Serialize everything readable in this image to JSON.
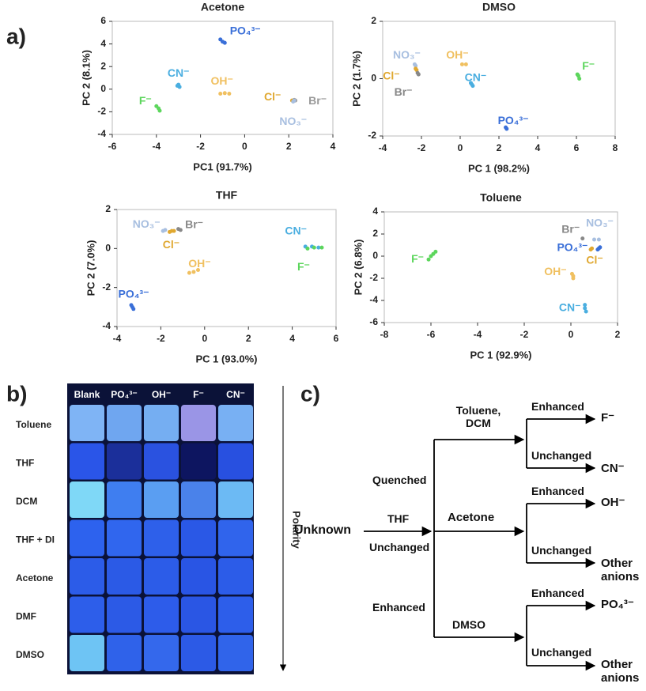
{
  "panel_labels": [
    "a)",
    "b)",
    "c)"
  ],
  "chart_data": [
    {
      "type": "scatter",
      "title": "Acetone",
      "xlabel": "PC1 (91.7%)",
      "ylabel": "PC 2 (8.1%)",
      "xlim": [
        -6,
        4
      ],
      "ylim": [
        -4,
        6
      ],
      "xticks": [
        -6,
        -4,
        -2,
        0,
        2,
        4
      ],
      "yticks": [
        -4,
        -2,
        0,
        2,
        4,
        6
      ],
      "series": [
        {
          "name": "PO₄³⁻",
          "color": "#3a6fd8",
          "x": [
            -1.1,
            -1.0,
            -0.9
          ],
          "y": [
            4.4,
            4.2,
            4.1
          ]
        },
        {
          "name": "CN⁻",
          "color": "#4aaee0",
          "x": [
            -3.0,
            -2.95,
            -3.05
          ],
          "y": [
            0.4,
            0.2,
            0.3
          ]
        },
        {
          "name": "OH⁻",
          "color": "#f0c060",
          "x": [
            -1.1,
            -0.9,
            -0.7
          ],
          "y": [
            -0.4,
            -0.35,
            -0.4
          ]
        },
        {
          "name": "F⁻",
          "color": "#5cd65c",
          "x": [
            -4.0,
            -3.9,
            -3.85
          ],
          "y": [
            -1.5,
            -1.7,
            -1.9
          ]
        },
        {
          "name": "Cl⁻",
          "color": "#e0a830",
          "x": [
            2.15,
            2.2
          ],
          "y": [
            -1.0,
            -1.05
          ]
        },
        {
          "name": "Br⁻",
          "color": "#999999",
          "x": [
            2.25,
            2.3
          ],
          "y": [
            -0.95,
            -1.0
          ]
        },
        {
          "name": "NO₃⁻",
          "color": "#a8bfe0",
          "x": [
            2.2,
            2.25
          ],
          "y": [
            -1.1,
            -1.0
          ]
        }
      ]
    },
    {
      "type": "scatter",
      "title": "DMSO",
      "xlabel": "PC 1 (98.2%)",
      "ylabel": "PC 2 (1.7%)",
      "xlim": [
        -4,
        8
      ],
      "ylim": [
        -2,
        2
      ],
      "xticks": [
        -4,
        -2,
        0,
        2,
        4,
        6,
        8
      ],
      "yticks": [
        -2,
        0,
        2
      ],
      "series": [
        {
          "name": "NO₃⁻",
          "color": "#a8bfe0",
          "x": [
            -2.35,
            -2.3
          ],
          "y": [
            0.5,
            0.45
          ]
        },
        {
          "name": "OH⁻",
          "color": "#f0c060",
          "x": [
            0.1,
            0.3
          ],
          "y": [
            0.5,
            0.5
          ]
        },
        {
          "name": "Cl⁻",
          "color": "#e0a830",
          "x": [
            -2.3,
            -2.25
          ],
          "y": [
            0.35,
            0.3
          ]
        },
        {
          "name": "Br⁻",
          "color": "#888888",
          "x": [
            -2.2,
            -2.15
          ],
          "y": [
            0.2,
            0.15
          ]
        },
        {
          "name": "CN⁻",
          "color": "#4aaee0",
          "x": [
            0.55,
            0.6,
            0.65
          ],
          "y": [
            -0.15,
            -0.2,
            -0.25
          ]
        },
        {
          "name": "F⁻",
          "color": "#5cd65c",
          "x": [
            6.05,
            6.1,
            6.15
          ],
          "y": [
            0.15,
            0.1,
            0.0
          ]
        },
        {
          "name": "PO₄³⁻",
          "color": "#3a6fd8",
          "x": [
            2.35,
            2.4
          ],
          "y": [
            -1.7,
            -1.75
          ]
        }
      ]
    },
    {
      "type": "scatter",
      "title": "THF",
      "xlabel": "PC 1 (93.0%)",
      "ylabel": "PC 2 (7.0%)",
      "xlim": [
        -4,
        6
      ],
      "ylim": [
        -4,
        2
      ],
      "xticks": [
        -4,
        -2,
        0,
        2,
        4,
        6
      ],
      "yticks": [
        -4,
        -2,
        0,
        2
      ],
      "series": [
        {
          "name": "NO₃⁻",
          "color": "#a8bfe0",
          "x": [
            -1.9,
            -1.8
          ],
          "y": [
            0.9,
            0.95
          ]
        },
        {
          "name": "Cl⁻",
          "color": "#e0a830",
          "x": [
            -1.6,
            -1.5,
            -1.4
          ],
          "y": [
            0.85,
            0.9,
            0.9
          ]
        },
        {
          "name": "Br⁻",
          "color": "#888888",
          "x": [
            -1.2,
            -1.1
          ],
          "y": [
            1.0,
            0.95
          ]
        },
        {
          "name": "OH⁻",
          "color": "#f0c060",
          "x": [
            -0.7,
            -0.5,
            -0.3
          ],
          "y": [
            -1.25,
            -1.2,
            -1.1
          ]
        },
        {
          "name": "CN⁻",
          "color": "#4aaee0",
          "x": [
            4.6,
            4.9,
            5.2
          ],
          "y": [
            0.1,
            0.1,
            0.05
          ]
        },
        {
          "name": "F⁻",
          "color": "#5cd65c",
          "x": [
            4.7,
            5.0,
            5.35
          ],
          "y": [
            0.0,
            0.05,
            0.05
          ]
        },
        {
          "name": "PO₄³⁻",
          "color": "#3a6fd8",
          "x": [
            -3.35,
            -3.3,
            -3.25
          ],
          "y": [
            -2.9,
            -3.0,
            -3.1
          ]
        }
      ]
    },
    {
      "type": "scatter",
      "title": "Toluene",
      "xlabel": "PC 1 (92.9%)",
      "ylabel": "PC 2 (6.8%)",
      "xlim": [
        -8,
        2
      ],
      "ylim": [
        -6,
        4
      ],
      "xticks": [
        -8,
        -6,
        -4,
        -2,
        0,
        2
      ],
      "yticks": [
        -6,
        -4,
        -2,
        0,
        2,
        4
      ],
      "series": [
        {
          "name": "F⁻",
          "color": "#5cd65c",
          "x": [
            -6.1,
            -6.0,
            -5.9,
            -5.8
          ],
          "y": [
            -0.3,
            0.0,
            0.2,
            0.4
          ]
        },
        {
          "name": "Br⁻",
          "color": "#888888",
          "x": [
            0.5
          ],
          "y": [
            1.6
          ]
        },
        {
          "name": "NO₃⁻",
          "color": "#a8bfe0",
          "x": [
            1.0,
            1.2
          ],
          "y": [
            1.5,
            1.5
          ]
        },
        {
          "name": "PO₄³⁻",
          "color": "#3a6fd8",
          "x": [
            1.15,
            1.2,
            1.25
          ],
          "y": [
            0.6,
            0.7,
            0.8
          ]
        },
        {
          "name": "Cl⁻",
          "color": "#e0a830",
          "x": [
            0.85,
            0.9
          ],
          "y": [
            0.6,
            0.7
          ]
        },
        {
          "name": "OH⁻",
          "color": "#f0c060",
          "x": [
            0.05,
            0.1,
            0.1
          ],
          "y": [
            -1.6,
            -1.8,
            -2.0
          ]
        },
        {
          "name": "CN⁻",
          "color": "#4aaee0",
          "x": [
            0.6,
            0.6,
            0.65
          ],
          "y": [
            -4.4,
            -4.7,
            -5.0
          ]
        }
      ]
    }
  ],
  "photo": {
    "columns": [
      "Blank",
      "PO₄³⁻",
      "OH⁻",
      "F⁻",
      "CN⁻"
    ],
    "rows": [
      "Toluene",
      "THF",
      "DCM",
      "THF + DI",
      "Acetone",
      "DMF",
      "DMSO"
    ],
    "axis_label": "Polarity"
  },
  "diagram": {
    "root": "Unknown",
    "solvent": "THF",
    "responses": [
      "Quenched",
      "Unchanged",
      "Enhanced"
    ],
    "branches": [
      {
        "solvent": "Toluene, DCM",
        "outcomes": [
          {
            "response": "Enhanced",
            "result": "F⁻"
          },
          {
            "response": "Unchanged",
            "result": "CN⁻"
          }
        ]
      },
      {
        "solvent": "Acetone",
        "outcomes": [
          {
            "response": "Enhanced",
            "result": "OH⁻"
          },
          {
            "response": "Unchanged",
            "result": "Other anions"
          }
        ]
      },
      {
        "solvent": "DMSO",
        "outcomes": [
          {
            "response": "Enhanced",
            "result": "PO₄³⁻"
          },
          {
            "response": "Unchanged",
            "result": "Other anions"
          }
        ]
      }
    ]
  }
}
